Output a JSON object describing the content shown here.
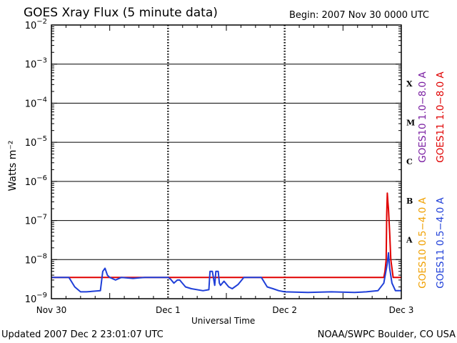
{
  "title": "GOES Xray Flux (5 minute data)",
  "begin": "Begin:  2007 Nov 30 0000 UTC",
  "footer": {
    "updated": "Updated 2007 Dec  2 23:01:07 UTC",
    "source": "NOAA/SWPC Boulder, CO USA"
  },
  "colors": {
    "goes10_long": "#7a1fa2",
    "goes11_long": "#e00000",
    "goes10_short": "#f0a000",
    "goes11_short": "#1f3fd8"
  },
  "chart_data": {
    "type": "line",
    "title": "GOES Xray Flux (5 minute data)",
    "xlabel": "Universal Time",
    "ylabel": "Watts m⁻²",
    "y_scale": "log",
    "ylim": [
      1e-09,
      0.01
    ],
    "xlim_days": [
      0,
      3
    ],
    "x_ticks": [
      "Nov 30",
      "Dec 1",
      "Dec 2",
      "Dec 3"
    ],
    "y_ticks": [
      {
        "base": "10",
        "exp": "−2",
        "value": 0.01
      },
      {
        "base": "10",
        "exp": "−3",
        "value": 0.001
      },
      {
        "base": "10",
        "exp": "−4",
        "value": 0.0001
      },
      {
        "base": "10",
        "exp": "−5",
        "value": 1e-05
      },
      {
        "base": "10",
        "exp": "−6",
        "value": 1e-06
      },
      {
        "base": "10",
        "exp": "−7",
        "value": 1e-07
      },
      {
        "base": "10",
        "exp": "−8",
        "value": 1e-08
      },
      {
        "base": "10",
        "exp": "−9",
        "value": 1e-09
      }
    ],
    "flare_classes": [
      {
        "label": "X",
        "value": 0.00032
      },
      {
        "label": "M",
        "value": 3.2e-05
      },
      {
        "label": "C",
        "value": 3.2e-06
      },
      {
        "label": "B",
        "value": 3.2e-07
      },
      {
        "label": "A",
        "value": 3.2e-08
      }
    ],
    "legend_placement": "right, vertical",
    "series": [
      {
        "name": "GOES11 1.0−8.0 A",
        "color": "#e00000",
        "x": [
          0,
          0.2,
          0.5,
          0.75,
          1.0,
          1.5,
          2.0,
          2.5,
          2.85,
          2.86,
          2.87,
          2.875,
          2.88,
          2.885,
          2.89,
          2.9,
          2.91,
          2.93,
          3.0
        ],
        "y": [
          3.5e-09,
          3.5e-09,
          3.5e-09,
          3.5e-09,
          3.5e-09,
          3.5e-09,
          3.5e-09,
          3.5e-09,
          3.5e-09,
          5e-09,
          1e-08,
          1.5e-07,
          5e-07,
          3e-07,
          2e-07,
          5e-08,
          1e-08,
          3.5e-09,
          3.5e-09
        ]
      },
      {
        "name": "GOES11 0.5−4.0 A",
        "color": "#1f3fd8",
        "x": [
          0,
          0.05,
          0.1,
          0.15,
          0.2,
          0.25,
          0.3,
          0.42,
          0.44,
          0.46,
          0.48,
          0.5,
          0.55,
          0.6,
          0.7,
          0.75,
          0.8,
          0.9,
          1.0,
          1.02,
          1.05,
          1.08,
          1.1,
          1.15,
          1.2,
          1.3,
          1.35,
          1.36,
          1.38,
          1.4,
          1.41,
          1.43,
          1.44,
          1.45,
          1.48,
          1.52,
          1.55,
          1.6,
          1.65,
          1.7,
          1.8,
          1.85,
          1.9,
          1.95,
          2.0,
          2.2,
          2.4,
          2.6,
          2.7,
          2.8,
          2.85,
          2.88,
          2.89,
          2.9,
          2.92,
          2.95,
          3.0
        ],
        "y": [
          3.5e-09,
          3.5e-09,
          3.5e-09,
          3.5e-09,
          2e-09,
          1.5e-09,
          1.5e-09,
          1.6e-09,
          5e-09,
          6e-09,
          4e-09,
          3.5e-09,
          3e-09,
          3.5e-09,
          3.3e-09,
          3.4e-09,
          3.5e-09,
          3.5e-09,
          3.5e-09,
          3.2e-09,
          2.5e-09,
          3e-09,
          3e-09,
          2e-09,
          1.8e-09,
          1.6e-09,
          1.7e-09,
          5e-09,
          5e-09,
          2.2e-09,
          5e-09,
          5e-09,
          2.5e-09,
          2.2e-09,
          2.8e-09,
          2e-09,
          1.8e-09,
          2.3e-09,
          3.5e-09,
          3.5e-09,
          3.5e-09,
          2e-09,
          1.8e-09,
          1.6e-09,
          1.5e-09,
          1.45e-09,
          1.5e-09,
          1.45e-09,
          1.5e-09,
          1.6e-09,
          2.5e-09,
          8e-09,
          1.5e-08,
          6e-09,
          2.5e-09,
          1.6e-09,
          1.6e-09
        ]
      }
    ],
    "legend_entries": [
      {
        "name": "GOES10 1.0−8.0 A",
        "color": "#7a1fa2"
      },
      {
        "name": "GOES11 1.0−8.0 A",
        "color": "#e00000"
      },
      {
        "name": "GOES10 0.5−4.0 A",
        "color": "#f0a000"
      },
      {
        "name": "GOES11 0.5−4.0 A",
        "color": "#1f3fd8"
      }
    ]
  }
}
